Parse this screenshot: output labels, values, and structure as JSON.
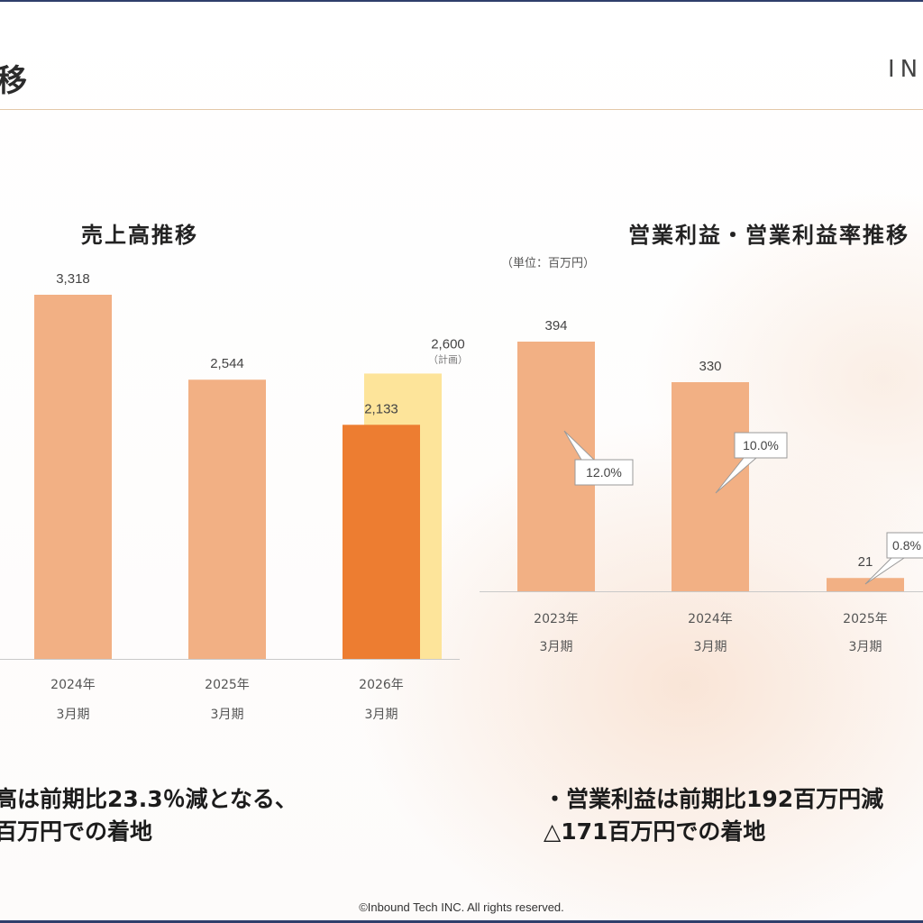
{
  "header": {
    "title": "移",
    "logo": "INI"
  },
  "left_chart": {
    "title": "売上高推移",
    "plan_note": "（計画）"
  },
  "right_chart": {
    "title": "営業利益・営業利益率推移",
    "unit": "（単位：百万円）"
  },
  "notes": {
    "left_line1": "高は前期比23.3％減となる、",
    "left_line2": "百万円での着地",
    "right_line1": "・営業利益は前期比192百万円減",
    "right_line2": "△171百万円での着地"
  },
  "footer": "©Inbound Tech INC. All rights reserved.",
  "colors": {
    "bar_light": "#f2b084",
    "bar_dark": "#ed7d31",
    "bar_plan": "#fde49a",
    "accent_rule": "#e3c8a8"
  },
  "chart_data": [
    {
      "type": "bar",
      "title": "売上高推移",
      "categories": [
        "2024年 3月期",
        "2025年 3月期",
        "2026年 3月期"
      ],
      "series": [
        {
          "name": "",
          "values": [
            3318,
            2544,
            2133
          ],
          "labels": [
            "3,318",
            "2,544",
            "2,133"
          ]
        },
        {
          "name": "計画",
          "values": [
            null,
            null,
            2600
          ],
          "labels": [
            "",
            "",
            "2,600"
          ]
        }
      ],
      "tick_labels": [
        [
          "2024年",
          "3月期"
        ],
        [
          "2025年",
          "3月期"
        ],
        [
          "2026年",
          "3月期"
        ]
      ],
      "ylim": [
        0,
        3318
      ]
    },
    {
      "type": "bar",
      "title": "営業利益・営業利益率推移",
      "unit": "（単位：百万円）",
      "categories": [
        "2023年 3月期",
        "2024年 3月期",
        "2025年 3月期"
      ],
      "series": [
        {
          "name": "",
          "values": [
            394,
            330,
            21
          ],
          "labels": [
            "394",
            "330",
            "21"
          ]
        }
      ],
      "rates": [
        "12.0%",
        "10.0%",
        "0.8%"
      ],
      "tick_labels": [
        [
          "2023年",
          "3月期"
        ],
        [
          "2024年",
          "3月期"
        ],
        [
          "2025年",
          "3月期"
        ]
      ],
      "ylim": [
        0,
        394
      ]
    }
  ]
}
